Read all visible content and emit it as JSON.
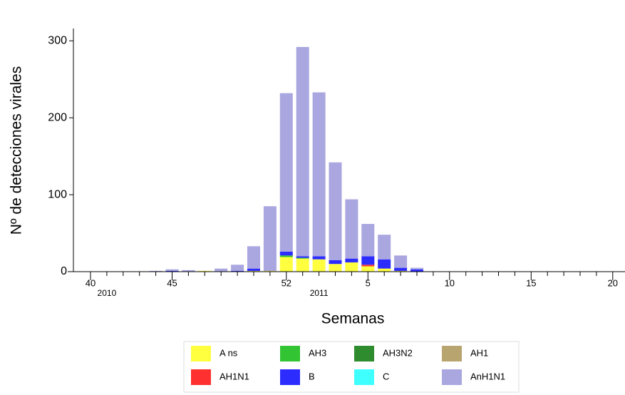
{
  "chart_data": {
    "type": "stacked_bar",
    "x_label": "Semanas",
    "y_label": "Nº de detecciones virales",
    "categories": [
      "40",
      null,
      null,
      null,
      null,
      "45",
      null,
      null,
      null,
      null,
      null,
      null,
      "52",
      null,
      null,
      null,
      null,
      "5",
      null,
      null,
      null,
      null,
      "10",
      null,
      null,
      null,
      null,
      "15",
      null,
      null,
      null,
      null,
      "20"
    ],
    "annotations": [
      "2010",
      "2011"
    ],
    "ylim": [
      0,
      316
    ],
    "yticks": [
      0,
      100,
      200,
      300
    ],
    "series": [
      {
        "name": "A ns",
        "color": "#ffff40",
        "values": [
          0,
          0,
          0,
          0,
          0,
          0,
          0,
          1,
          0,
          0,
          1,
          1,
          19,
          17,
          16,
          10,
          12,
          7,
          4,
          1,
          0,
          0,
          0,
          0,
          0,
          0,
          0,
          0,
          0,
          0,
          0,
          0,
          0
        ]
      },
      {
        "name": "AH3",
        "color": "#33c433",
        "values": [
          0,
          0,
          0,
          0,
          0,
          0,
          0,
          0,
          0,
          0,
          0,
          0,
          2,
          1,
          0,
          0,
          0,
          0,
          0,
          0,
          0,
          0,
          0,
          0,
          0,
          0,
          0,
          0,
          0,
          0,
          0,
          0,
          0
        ]
      },
      {
        "name": "AH3N2",
        "color": "#2e8b2e",
        "values": [
          0,
          0,
          0,
          0,
          0,
          0,
          0,
          0,
          0,
          0,
          0,
          0,
          0,
          0,
          0,
          0,
          0,
          0,
          0,
          0,
          0,
          0,
          0,
          0,
          0,
          0,
          0,
          0,
          0,
          0,
          0,
          0,
          0
        ]
      },
      {
        "name": "AH1",
        "color": "#b8a46e",
        "values": [
          0,
          0,
          0,
          0,
          0,
          0,
          0,
          0,
          0,
          0,
          0,
          0,
          0,
          0,
          0,
          0,
          0,
          0,
          0,
          0,
          0,
          0,
          0,
          0,
          0,
          0,
          0,
          0,
          0,
          0,
          0,
          0,
          0
        ]
      },
      {
        "name": "AH1N1",
        "color": "#ff3030",
        "values": [
          0,
          0,
          0,
          0,
          0,
          0,
          0,
          0,
          0,
          0,
          0,
          0,
          0,
          0,
          0,
          0,
          0,
          2,
          0,
          0,
          0,
          0,
          0,
          0,
          0,
          0,
          0,
          0,
          0,
          0,
          0,
          0,
          0
        ]
      },
      {
        "name": "B",
        "color": "#2c2cff",
        "values": [
          0,
          0,
          0,
          0,
          0,
          1,
          0,
          0,
          0,
          1,
          3,
          0,
          5,
          2,
          4,
          5,
          5,
          11,
          12,
          4,
          3,
          0,
          0,
          0,
          0,
          0,
          0,
          0,
          0,
          0,
          0,
          0,
          0
        ]
      },
      {
        "name": "C",
        "color": "#40ffff",
        "values": [
          0,
          0,
          0,
          0,
          0,
          0,
          0,
          0,
          0,
          0,
          0,
          0,
          0,
          0,
          0,
          0,
          0,
          0,
          0,
          0,
          0,
          0,
          0,
          0,
          0,
          0,
          0,
          0,
          0,
          0,
          0,
          0,
          0
        ]
      },
      {
        "name": "AnH1N1",
        "color": "#a9a6e0",
        "values": [
          0,
          0,
          0,
          0,
          1,
          2,
          2,
          0,
          4,
          8,
          29,
          84,
          206,
          272,
          213,
          127,
          77,
          42,
          32,
          16,
          2,
          0,
          0,
          0,
          0,
          0,
          0,
          0,
          0,
          0,
          0,
          0,
          0
        ]
      }
    ]
  }
}
